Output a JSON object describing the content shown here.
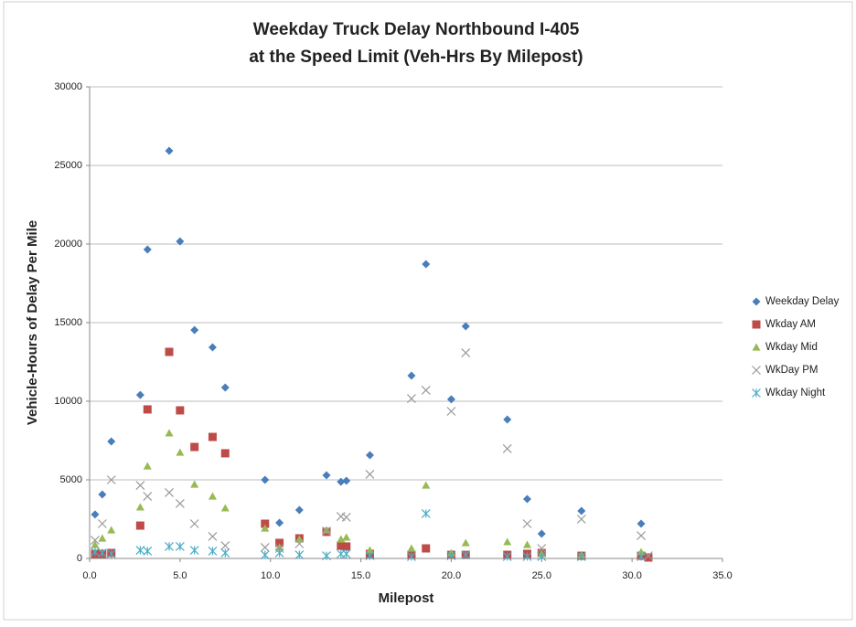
{
  "chart_data": {
    "type": "scatter",
    "title": [
      "Weekday Truck Delay Northbound I-405",
      "at the Speed Limit (Veh-Hrs By Milepost)"
    ],
    "x_label": "Milepost",
    "y_label": "Vehicle-Hours of Delay Per Mile",
    "xlim": [
      0,
      35
    ],
    "xticks": [
      {
        "value": 0,
        "label": "0.0"
      },
      {
        "value": 5,
        "label": "5.0"
      },
      {
        "value": 10,
        "label": "10.0"
      },
      {
        "value": 15,
        "label": "15.0"
      },
      {
        "value": 20,
        "label": "20.0"
      },
      {
        "value": 25,
        "label": "25.0"
      },
      {
        "value": 30,
        "label": "30.0"
      },
      {
        "value": 35,
        "label": "35.0"
      }
    ],
    "ylim": [
      0,
      30000
    ],
    "yticks": [
      0,
      5000,
      10000,
      15000,
      20000,
      25000,
      30000
    ],
    "grid": true,
    "legend": "right",
    "series": [
      {
        "name": "Weekday Delay",
        "color": "#4a7ebb",
        "marker": "diamond",
        "x": [
          0.3,
          0.7,
          1.2,
          2.8,
          3.2,
          4.4,
          5.0,
          5.8,
          6.8,
          7.5,
          9.7,
          10.5,
          11.6,
          13.1,
          13.9,
          14.2,
          15.5,
          17.8,
          18.6,
          20.0,
          20.8,
          23.1,
          24.2,
          25.0,
          27.2,
          30.5
        ],
        "values": [
          2800,
          4070,
          7440,
          10400,
          19650,
          25930,
          20170,
          14530,
          13430,
          10870,
          5000,
          2270,
          3080,
          5290,
          4880,
          4940,
          6570,
          11630,
          18720,
          10120,
          14770,
          8840,
          3780,
          1570,
          3020,
          2210
        ]
      },
      {
        "name": "Wkday AM",
        "color": "#be4b48",
        "marker": "square",
        "x": [
          0.3,
          0.7,
          1.2,
          2.8,
          3.2,
          4.4,
          5.0,
          5.8,
          6.8,
          7.5,
          9.7,
          10.5,
          11.6,
          13.1,
          13.9,
          14.2,
          15.5,
          17.8,
          18.6,
          20.0,
          20.8,
          23.1,
          24.2,
          25.0,
          27.2,
          30.5,
          30.9
        ],
        "values": [
          290,
          290,
          350,
          2090,
          9480,
          13140,
          9420,
          7090,
          7730,
          6690,
          2210,
          990,
          1280,
          1690,
          810,
          760,
          290,
          230,
          640,
          230,
          230,
          230,
          290,
          350,
          170,
          170,
          60
        ]
      },
      {
        "name": "Wkday Mid",
        "color": "#98b954",
        "marker": "triangle",
        "x": [
          0.3,
          0.7,
          1.2,
          2.8,
          3.2,
          4.4,
          5.0,
          5.8,
          6.8,
          7.5,
          9.7,
          10.5,
          11.6,
          13.1,
          13.9,
          14.2,
          15.5,
          17.8,
          18.6,
          20.0,
          20.8,
          23.1,
          24.2,
          25.0,
          27.2,
          30.5
        ],
        "values": [
          870,
          1280,
          1800,
          3260,
          5870,
          7970,
          6740,
          4710,
          3950,
          3200,
          1920,
          700,
          1220,
          1800,
          1220,
          1340,
          520,
          640,
          4650,
          350,
          990,
          1050,
          870,
          290,
          230,
          410
        ]
      },
      {
        "name": "WkDay PM",
        "color": "#9a9a9a",
        "marker": "x",
        "x": [
          0.3,
          0.7,
          1.2,
          2.8,
          3.2,
          4.4,
          5.0,
          5.8,
          6.8,
          7.5,
          9.7,
          10.5,
          11.6,
          13.1,
          13.9,
          14.2,
          15.5,
          17.8,
          18.6,
          20.0,
          20.8,
          23.1,
          24.2,
          25.0,
          27.2,
          30.5,
          30.9
        ],
        "values": [
          1160,
          2210,
          5000,
          4650,
          3950,
          4190,
          3490,
          2210,
          1400,
          810,
          700,
          640,
          930,
          1740,
          2670,
          2620,
          5350,
          10170,
          10700,
          9360,
          13080,
          6980,
          2210,
          640,
          2500,
          1450,
          170
        ]
      },
      {
        "name": "Wkday Night",
        "color": "#4bacc6",
        "marker": "star",
        "x": [
          0.3,
          0.7,
          1.2,
          2.8,
          3.2,
          4.4,
          5.0,
          5.8,
          6.8,
          7.5,
          9.7,
          10.5,
          11.6,
          13.1,
          13.9,
          14.2,
          15.5,
          17.8,
          18.6,
          20.0,
          20.8,
          23.1,
          24.2,
          25.0,
          27.2,
          30.5
        ],
        "values": [
          410,
          350,
          290,
          520,
          470,
          760,
          760,
          520,
          470,
          350,
          230,
          350,
          230,
          170,
          290,
          290,
          170,
          120,
          2850,
          170,
          230,
          120,
          120,
          120,
          120,
          120
        ]
      }
    ]
  }
}
